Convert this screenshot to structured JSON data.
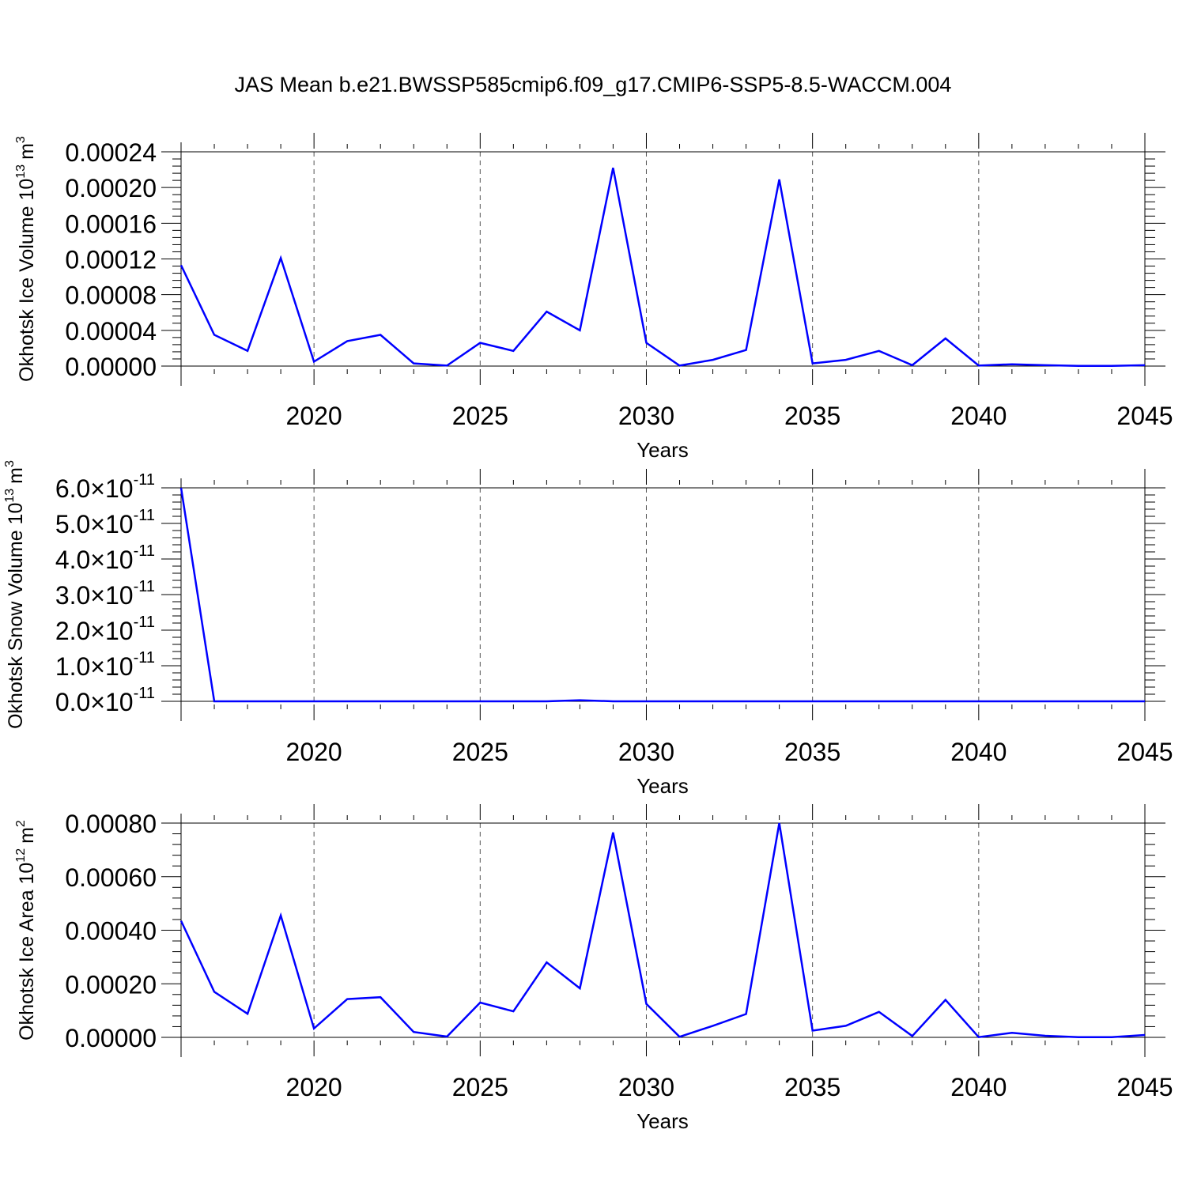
{
  "title": "JAS Mean b.e21.BWSSP585cmip6.f09_g17.CMIP6-SSP5-8.5-WACCM.004",
  "colors": {
    "series": "#0000ff",
    "axes": "#000000",
    "grid": "#555555"
  },
  "chart_data": [
    {
      "type": "line",
      "ylabel": "Okhotsk Ice Volume 10^13 m^3",
      "ylabel_base": "Okhotsk Ice Volume 10",
      "ylabel_exp": "13",
      "ylabel_unit": "m",
      "ylabel_unit_exp": "3",
      "xlabel": "Years",
      "xlim": [
        2016,
        2045
      ],
      "ylim": [
        0,
        0.00024
      ],
      "xticks": [
        "2020",
        "2025",
        "2030",
        "2035",
        "2040",
        "2045"
      ],
      "xtick_values": [
        2020,
        2025,
        2030,
        2035,
        2040,
        2045
      ],
      "yticks": [
        "0.00000",
        "0.00004",
        "0.00008",
        "0.00012",
        "0.00016",
        "0.00020",
        "0.00024"
      ],
      "ytick_values": [
        0,
        4e-05,
        8e-05,
        0.00012,
        0.00016,
        0.0002,
        0.00024
      ],
      "grid": "vertical dashed",
      "x": [
        2016,
        2017,
        2018,
        2019,
        2020,
        2021,
        2022,
        2023,
        2024,
        2025,
        2026,
        2027,
        2028,
        2029,
        2030,
        2031,
        2032,
        2033,
        2034,
        2035,
        2036,
        2037,
        2038,
        2039,
        2040,
        2041,
        2042,
        2043,
        2044,
        2045
      ],
      "y": [
        0.000113,
        3.5e-05,
        1.7e-05,
        0.000121,
        5e-06,
        2.8e-05,
        3.5e-05,
        3e-06,
        5e-07,
        2.6e-05,
        1.7e-05,
        6.1e-05,
        4e-05,
        0.000222,
        2.6e-05,
        5e-07,
        7e-06,
        1.8e-05,
        0.000209,
        3e-06,
        7e-06,
        1.7e-05,
        1e-06,
        3.1e-05,
        5e-07,
        2e-06,
        1e-06,
        2e-07,
        2e-07,
        1e-06
      ]
    },
    {
      "type": "line",
      "ylabel": "Okhotsk Snow Volume 10^13 m^3",
      "ylabel_base": "Okhotsk Snow Volume 10",
      "ylabel_exp": "13",
      "ylabel_unit": "m",
      "ylabel_unit_exp": "3",
      "xlabel": "Years",
      "xlim": [
        2016,
        2045
      ],
      "ylim": [
        0,
        6e-11
      ],
      "xticks": [
        "2020",
        "2025",
        "2030",
        "2035",
        "2040",
        "2045"
      ],
      "xtick_values": [
        2020,
        2025,
        2030,
        2035,
        2040,
        2045
      ],
      "yticks": [
        "0.0",
        "1.0",
        "2.0",
        "3.0",
        "4.0",
        "5.0",
        "6.0"
      ],
      "ytick_values": [
        0,
        1e-11,
        2e-11,
        3e-11,
        4e-11,
        5e-11,
        6e-11
      ],
      "ytick_multiplier": "×10",
      "ytick_exp": "-11",
      "grid": "vertical dashed",
      "x": [
        2016,
        2017,
        2018,
        2019,
        2020,
        2021,
        2022,
        2023,
        2024,
        2025,
        2026,
        2027,
        2028,
        2029,
        2030,
        2031,
        2032,
        2033,
        2034,
        2035,
        2036,
        2037,
        2038,
        2039,
        2040,
        2041,
        2042,
        2043,
        2044,
        2045
      ],
      "y": [
        6e-11,
        0,
        0,
        0,
        0,
        0,
        0,
        0,
        0,
        0,
        0,
        0,
        3e-13,
        0,
        0,
        0,
        0,
        0,
        0,
        0,
        0,
        0,
        0,
        0,
        0,
        0,
        0,
        0,
        0,
        0
      ]
    },
    {
      "type": "line",
      "ylabel": "Okhotsk Ice Area 10^12 m^2",
      "ylabel_base": "Okhotsk Ice Area 10",
      "ylabel_exp": "12",
      "ylabel_unit": "m",
      "ylabel_unit_exp": "2",
      "xlabel": "Years",
      "xlim": [
        2016,
        2045
      ],
      "ylim": [
        0,
        0.0008
      ],
      "xticks": [
        "2020",
        "2025",
        "2030",
        "2035",
        "2040",
        "2045"
      ],
      "xtick_values": [
        2020,
        2025,
        2030,
        2035,
        2040,
        2045
      ],
      "yticks": [
        "0.00000",
        "0.00020",
        "0.00040",
        "0.00060",
        "0.00080"
      ],
      "ytick_values": [
        0,
        0.0002,
        0.0004,
        0.0006,
        0.0008
      ],
      "grid": "vertical dashed",
      "x": [
        2016,
        2017,
        2018,
        2019,
        2020,
        2021,
        2022,
        2023,
        2024,
        2025,
        2026,
        2027,
        2028,
        2029,
        2030,
        2031,
        2032,
        2033,
        2034,
        2035,
        2036,
        2037,
        2038,
        2039,
        2040,
        2041,
        2042,
        2043,
        2044,
        2045
      ],
      "y": [
        0.000435,
        0.00017,
        8.8e-05,
        0.000455,
        3.3e-05,
        0.000143,
        0.00015,
        2e-05,
        3e-06,
        0.00013,
        9.7e-05,
        0.00028,
        0.000183,
        0.000765,
        0.000125,
        2e-06,
        4.3e-05,
        8.7e-05,
        0.0008,
        2.5e-05,
        4.3e-05,
        9.5e-05,
        5e-06,
        0.00014,
        1e-06,
        1.7e-05,
        6e-06,
        1e-06,
        1e-06,
        9e-06
      ]
    }
  ]
}
